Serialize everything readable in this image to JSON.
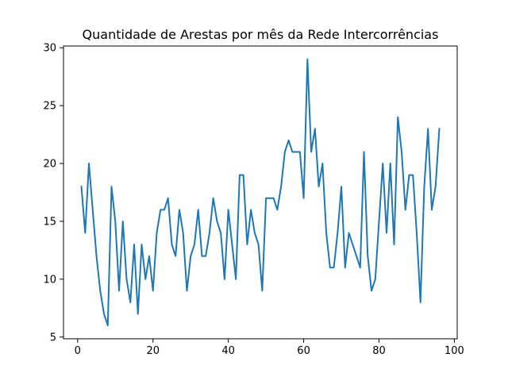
{
  "chart_data": {
    "type": "line",
    "title": "Quantidade de Arestas por mês da Rede Intercorrências",
    "xlabel": "",
    "ylabel": "",
    "xlim": [
      -3.75,
      100.75
    ],
    "ylim": [
      4.85,
      30.15
    ],
    "x_ticks": [
      0,
      20,
      40,
      60,
      80,
      100
    ],
    "y_ticks": [
      5,
      10,
      15,
      20,
      25,
      30
    ],
    "grid": false,
    "legend": "none",
    "series": [
      {
        "color": "#1f77b4",
        "x": [
          1,
          2,
          3,
          4,
          5,
          6,
          7,
          8,
          9,
          10,
          11,
          12,
          13,
          14,
          15,
          16,
          17,
          18,
          19,
          20,
          21,
          22,
          23,
          24,
          25,
          26,
          27,
          28,
          29,
          30,
          31,
          32,
          33,
          34,
          35,
          36,
          37,
          38,
          39,
          40,
          41,
          42,
          43,
          44,
          45,
          46,
          47,
          48,
          49,
          50,
          51,
          52,
          53,
          54,
          55,
          56,
          57,
          58,
          59,
          60,
          61,
          62,
          63,
          64,
          65,
          66,
          67,
          68,
          69,
          70,
          71,
          72,
          73,
          74,
          75,
          76,
          77,
          78,
          79,
          80,
          81,
          82,
          83,
          84,
          85,
          86,
          87,
          88,
          89,
          90,
          91,
          92,
          93,
          94,
          95,
          96
        ],
        "y": [
          18,
          14,
          20,
          16,
          12,
          9,
          7,
          6,
          18,
          15,
          9,
          15,
          10,
          8,
          13,
          7,
          13,
          10,
          12,
          9,
          14,
          16,
          16,
          17,
          13,
          12,
          16,
          14,
          9,
          12,
          13,
          16,
          12,
          12,
          14,
          17,
          15,
          14,
          10,
          16,
          13,
          10,
          19,
          19,
          13,
          16,
          14,
          13,
          9,
          17,
          17,
          17,
          16,
          18,
          21,
          22,
          21,
          21,
          21,
          17,
          29,
          21,
          23,
          18,
          20,
          14,
          11,
          11,
          14,
          18,
          11,
          14,
          13,
          12,
          11,
          21,
          12,
          9,
          10,
          15,
          20,
          14,
          20,
          13,
          24,
          21,
          16,
          19,
          19,
          14,
          8,
          18,
          23,
          16,
          18,
          23
        ]
      }
    ]
  }
}
